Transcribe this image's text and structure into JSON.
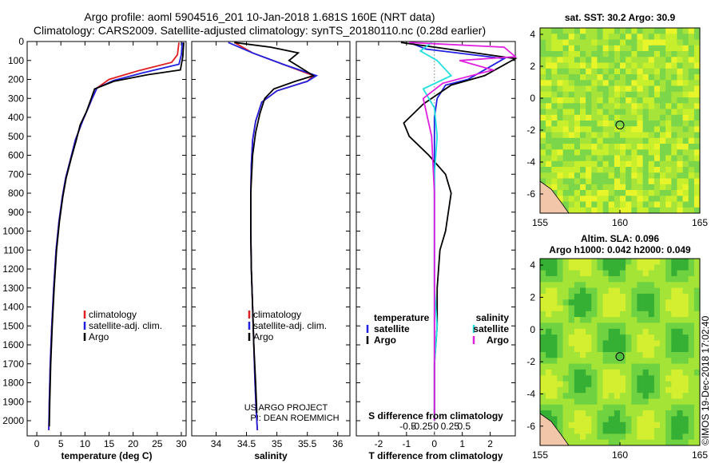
{
  "header": {
    "line1": "Argo profile: aoml 5904516_201 10-Jan-2018 1.681S 160E (NRT data)",
    "line2": "Climatology: CARS2009. Satellite-adjusted climatology: synTS_20180110.nc (0.28d earlier)"
  },
  "colors": {
    "climatology": "#e02020",
    "satellite": "#2020e0",
    "argo": "#000000",
    "sat_s": "#20e0e0",
    "argo_s": "#e020e0"
  },
  "chart_data": [
    {
      "type": "line",
      "id": "temperature",
      "xlabel": "temperature (deg C)",
      "ylabel": "",
      "xlim": [
        -2,
        31
      ],
      "ylim": [
        2080,
        0
      ],
      "xticks": [
        "0",
        "5",
        "10",
        "15",
        "20",
        "25",
        "30"
      ],
      "xtick_values": [
        0,
        5,
        10,
        15,
        20,
        25,
        30
      ],
      "yticks": [
        "0",
        "100",
        "200",
        "300",
        "400",
        "500",
        "600",
        "700",
        "800",
        "900",
        "1000",
        "1100",
        "1200",
        "1300",
        "1400",
        "1500",
        "1600",
        "1700",
        "1800",
        "1900",
        "2000"
      ],
      "ytick_values": [
        0,
        100,
        200,
        300,
        400,
        500,
        600,
        700,
        800,
        900,
        1000,
        1100,
        1200,
        1300,
        1400,
        1500,
        1600,
        1700,
        1800,
        1900,
        2000
      ],
      "legend": [
        "climatology",
        "satellite-adj. clim.",
        "Argo"
      ],
      "series": [
        {
          "name": "climatology",
          "color": "#e02020",
          "x": [
            29.5,
            29.2,
            28,
            21,
            15,
            12.5,
            11.5,
            10.5,
            9.5,
            8,
            7,
            6,
            5.3,
            4.6,
            4,
            3.5,
            3.1,
            2.8,
            2.6,
            2.5
          ],
          "y": [
            5,
            70,
            110,
            155,
            200,
            245,
            300,
            360,
            420,
            520,
            620,
            720,
            820,
            950,
            1100,
            1300,
            1500,
            1700,
            1900,
            2050
          ]
        },
        {
          "name": "satellite-adj. clim.",
          "color": "#2020e0",
          "x": [
            30.2,
            30,
            29.5,
            22,
            16,
            12.5,
            11.5,
            10.5,
            9.5,
            8,
            7,
            6,
            5.3,
            4.6,
            4,
            3.5,
            3.1,
            2.8,
            2.6,
            2.5
          ],
          "y": [
            5,
            70,
            120,
            165,
            205,
            245,
            300,
            360,
            420,
            520,
            620,
            720,
            820,
            950,
            1100,
            1300,
            1500,
            1700,
            1900,
            2050
          ]
        },
        {
          "name": "Argo",
          "color": "#000000",
          "x": [
            30.5,
            30.3,
            29.8,
            23,
            16,
            12,
            11.3,
            10.3,
            9,
            8.2,
            7.1,
            6.1,
            5.4,
            4.7,
            4.1,
            3.6,
            3.2,
            2.9,
            2.7,
            2.6
          ],
          "y": [
            5,
            80,
            150,
            175,
            210,
            250,
            300,
            370,
            440,
            520,
            620,
            720,
            820,
            950,
            1100,
            1300,
            1500,
            1700,
            1900,
            2030
          ]
        }
      ]
    },
    {
      "type": "line",
      "id": "salinity",
      "xlabel": "salinity",
      "xlim": [
        33.6,
        36.2
      ],
      "ylim": [
        2080,
        0
      ],
      "xticks": [
        "34",
        "34.5",
        "35",
        "35.5",
        "36"
      ],
      "xtick_values": [
        34,
        34.5,
        35,
        35.5,
        36
      ],
      "legend": [
        "climatology",
        "satellite-adj. clim.",
        "Argo"
      ],
      "series": [
        {
          "name": "climatology",
          "color": "#e02020",
          "x": [
            34.3,
            34.6,
            35.1,
            35.6,
            35.5,
            35,
            34.75,
            34.65,
            34.6,
            34.58,
            34.57,
            34.57,
            34.58,
            34.6,
            34.62,
            34.64,
            34.66,
            34.68
          ],
          "y": [
            5,
            60,
            120,
            180,
            210,
            260,
            320,
            420,
            520,
            650,
            800,
            1000,
            1200,
            1400,
            1600,
            1800,
            1950,
            2050
          ]
        },
        {
          "name": "satellite-adj. clim.",
          "color": "#2020e0",
          "x": [
            34.2,
            34.6,
            35.1,
            35.65,
            35.5,
            35,
            34.75,
            34.65,
            34.6,
            34.58,
            34.57,
            34.57,
            34.58,
            34.6,
            34.62,
            34.64,
            34.66,
            34.68
          ],
          "y": [
            5,
            60,
            120,
            180,
            210,
            260,
            320,
            420,
            520,
            650,
            800,
            1000,
            1200,
            1400,
            1600,
            1800,
            1950,
            2050
          ]
        },
        {
          "name": "Argo",
          "color": "#000000",
          "x": [
            34.3,
            34.9,
            35.35,
            35.2,
            35.45,
            35.6,
            35.3,
            34.95,
            34.8,
            34.72,
            34.65,
            34.6,
            34.57,
            34.57,
            34.58,
            34.6,
            34.62,
            34.65,
            34.67
          ],
          "y": [
            5,
            30,
            60,
            100,
            150,
            180,
            210,
            250,
            300,
            380,
            480,
            600,
            800,
            1000,
            1200,
            1400,
            1600,
            1800,
            1960
          ]
        }
      ]
    },
    {
      "type": "line",
      "id": "difference",
      "xlabel": "T difference from climatology",
      "top_label": "S difference from climatology",
      "xlim": [
        -2.8,
        2.9
      ],
      "ylim": [
        2080,
        0
      ],
      "xticks": [
        "-2",
        "-1",
        "0",
        "1",
        "2"
      ],
      "xtick_values": [
        -2,
        -1,
        0,
        1,
        2
      ],
      "top_xticks": [
        "-0.5",
        "-0.25",
        "0",
        "0.25",
        "0.5"
      ],
      "top_xtick_values": [
        -0.5,
        -0.25,
        0,
        0.25,
        0.5
      ],
      "legend_left_title": "temperature",
      "legend_left": [
        "satellite",
        "Argo"
      ],
      "legend_right_title": "salinity",
      "legend_right": [
        "satellite",
        "Argo"
      ],
      "series": [
        {
          "name": "T satellite",
          "color": "#2020e0",
          "x": [
            -0.9,
            -0.3,
            2.5,
            1.2,
            0.4,
            0.1,
            0,
            0,
            0,
            0,
            0,
            0,
            0,
            0,
            0
          ],
          "y": [
            5,
            40,
            90,
            200,
            230,
            300,
            400,
            500,
            700,
            900,
            1100,
            1300,
            1500,
            1800,
            2000
          ]
        },
        {
          "name": "T Argo",
          "color": "#000000",
          "x": [
            -1.2,
            0.5,
            2.9,
            1.8,
            0.6,
            -0.4,
            -1.1,
            -0.9,
            -0.2,
            0.4,
            0.6,
            0.5,
            0.4,
            0.2,
            0.1,
            0.1,
            0,
            0,
            0
          ],
          "y": [
            5,
            40,
            90,
            180,
            230,
            330,
            430,
            500,
            600,
            700,
            800,
            900,
            1000,
            1100,
            1300,
            1500,
            1700,
            1900,
            2000
          ]
        },
        {
          "name": "S satellite",
          "color": "#20e0e0",
          "x": [
            -0.1,
            -0.5,
            0.1,
            0.6,
            -0.4,
            0,
            0.1,
            0,
            0,
            0,
            0,
            0.1,
            0,
            0,
            0
          ],
          "y": [
            5,
            50,
            100,
            180,
            250,
            350,
            500,
            700,
            900,
            1100,
            1300,
            1500,
            1700,
            1900,
            2000
          ]
        },
        {
          "name": "S Argo",
          "color": "#e020e0",
          "x": [
            -0.9,
            2.5,
            2.9,
            0.9,
            2.1,
            0.3,
            -0.4,
            -0.1,
            0,
            0,
            0,
            0,
            0,
            0
          ],
          "y": [
            5,
            30,
            80,
            100,
            150,
            220,
            300,
            500,
            800,
            1100,
            1400,
            1700,
            1900,
            2000
          ]
        }
      ]
    },
    {
      "type": "heatmap",
      "id": "sst_map",
      "title": "sat. SST: 30.2 Argo: 30.9",
      "xlim": [
        155,
        165
      ],
      "ylim": [
        -7.2,
        4.4
      ],
      "xticks": [
        "155",
        "160",
        "165"
      ],
      "xtick_values": [
        155,
        160,
        165
      ],
      "yticks": [
        "4",
        "2",
        "0",
        "-2",
        "-4",
        "-6"
      ],
      "ytick_values": [
        4,
        2,
        0,
        -2,
        -4,
        -6
      ],
      "marker": {
        "lon": 160,
        "lat": -1.681
      }
    },
    {
      "type": "heatmap",
      "id": "sla_map",
      "title": "Altim. SLA: 0.096",
      "subtitle": "Argo h1000: 0.042 h2000: 0.049",
      "xlim": [
        155,
        165
      ],
      "ylim": [
        -7.2,
        4.4
      ],
      "xticks": [
        "155",
        "160",
        "165"
      ],
      "xtick_values": [
        155,
        160,
        165
      ],
      "yticks": [
        "4",
        "2",
        "0",
        "-2",
        "-4",
        "-6"
      ],
      "ytick_values": [
        4,
        2,
        0,
        -2,
        -4,
        -6
      ],
      "marker": {
        "lon": 160,
        "lat": -1.681
      }
    }
  ],
  "panel_notes": {
    "project": "US ARGO PROJECT",
    "pi": "PI: DEAN ROEMMICH"
  },
  "credit": "©IMOS 19-Dec-2018 17:02:40"
}
